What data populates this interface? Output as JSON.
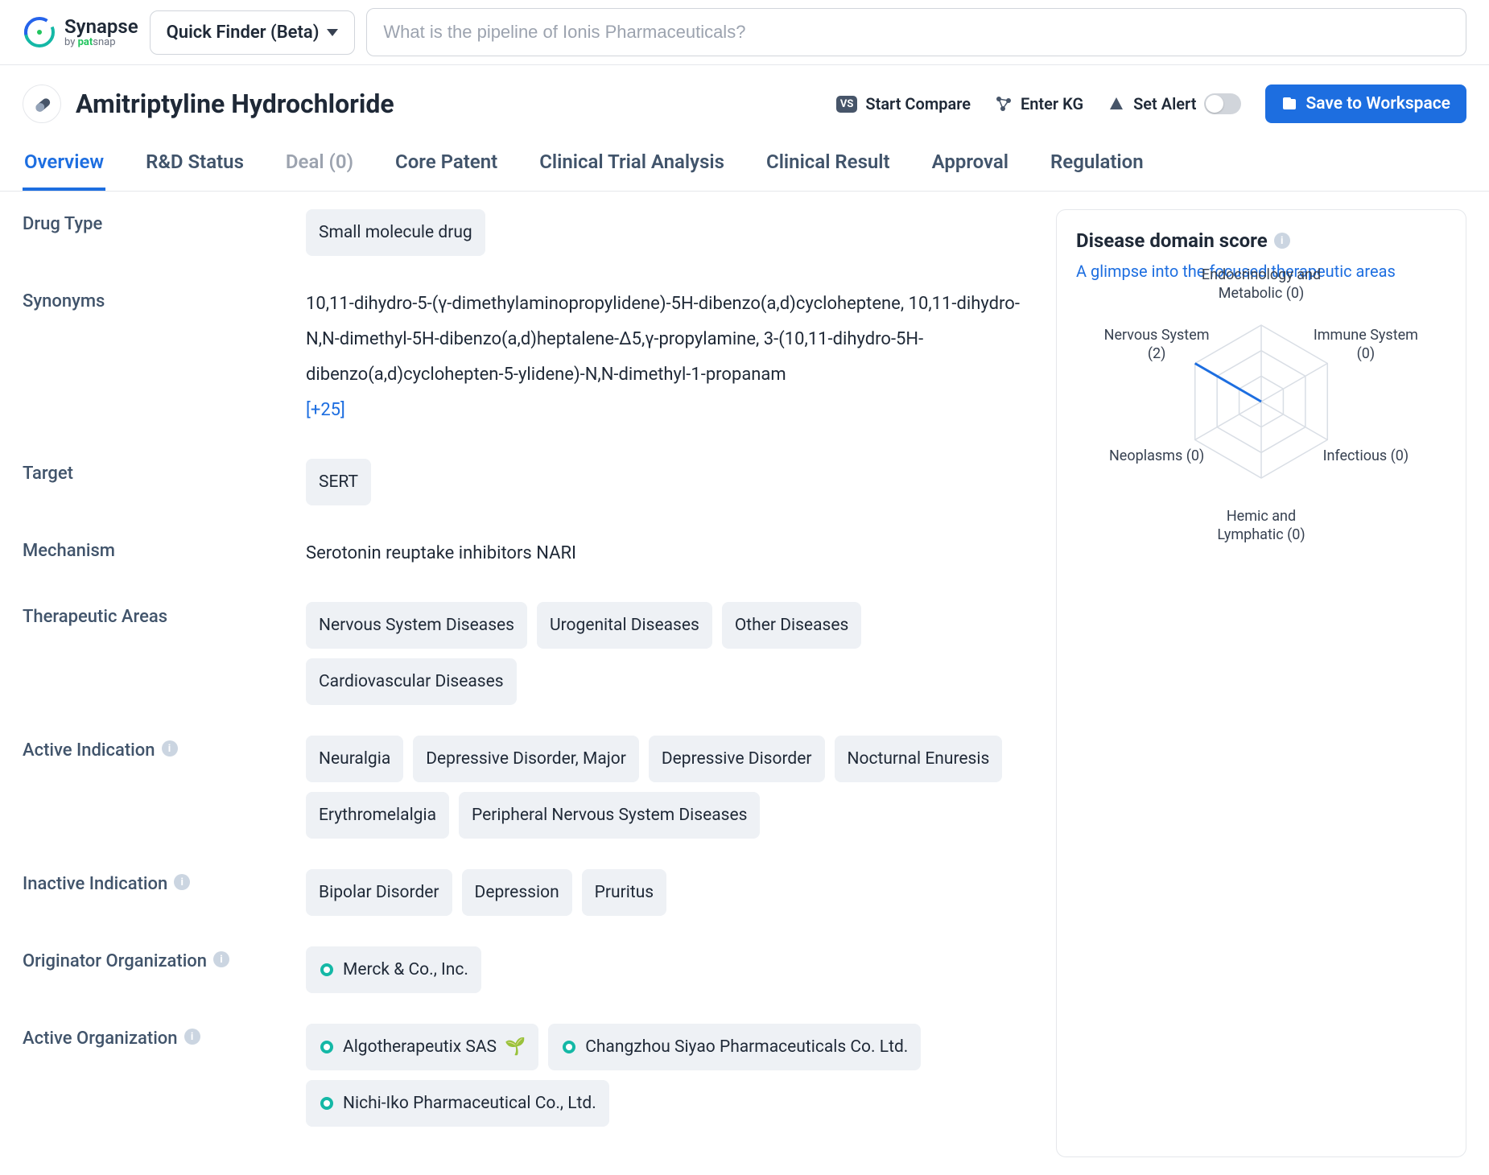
{
  "header": {
    "logo_main": "Synapse",
    "logo_by": "by ",
    "logo_brand_green": "pat",
    "logo_brand_rest": "snap",
    "quick_finder_label": "Quick Finder (Beta)",
    "search_placeholder": "What is the pipeline of Ionis Pharmaceuticals?"
  },
  "title": "Amitriptyline Hydrochloride",
  "actions": {
    "compare": "Start Compare",
    "enter_kg": "Enter KG",
    "set_alert": "Set Alert",
    "save": "Save to Workspace"
  },
  "tabs": {
    "overview": "Overview",
    "rd_status": "R&D Status",
    "deal": "Deal (0)",
    "core_patent": "Core Patent",
    "clinical_trial": "Clinical Trial Analysis",
    "clinical_result": "Clinical Result",
    "approval": "Approval",
    "regulation": "Regulation"
  },
  "fields": {
    "drug_type_label": "Drug Type",
    "drug_type_values": [
      "Small molecule drug"
    ],
    "synonyms_label": "Synonyms",
    "synonyms_text": "10,11-dihydro-5-(γ-dimethylaminopropylidene)-5H-dibenzo(a,d)cycloheptene, 10,11-dihydro-N,N-dimethyl-5H-dibenzo(a,d)heptalene-Δ5,γ-propylamine, 3-(10,11-dihydro-5H-dibenzo(a,d)cyclohepten-5-ylidene)-N,N-dimethyl-1-propanam",
    "synonyms_more": "[+25]",
    "target_label": "Target",
    "target_values": [
      "SERT"
    ],
    "mechanism_label": "Mechanism",
    "mechanism_text": "Serotonin reuptake inhibitors   NARI",
    "therapeutic_label": "Therapeutic Areas",
    "therapeutic_values": [
      "Nervous System Diseases",
      "Urogenital Diseases",
      "Other Diseases",
      "Cardiovascular Diseases"
    ],
    "active_ind_label": "Active Indication",
    "active_ind_values": [
      "Neuralgia",
      "Depressive Disorder, Major",
      "Depressive Disorder",
      "Nocturnal Enuresis",
      "Erythromelalgia",
      "Peripheral Nervous System Diseases"
    ],
    "inactive_ind_label": "Inactive Indication",
    "inactive_ind_values": [
      "Bipolar Disorder",
      "Depression",
      "Pruritus"
    ],
    "originator_label": "Originator Organization",
    "originator_values": [
      "Merck & Co., Inc."
    ],
    "active_org_label": "Active Organization",
    "active_org_values": [
      "Algotherapeutix SAS",
      "Changzhou Siyao Pharmaceuticals Co. Ltd.",
      "Nichi-Iko Pharmaceutical Co., Ltd."
    ]
  },
  "side": {
    "title": "Disease domain score",
    "subtitle": "A glimpse into the focused therapeutic areas",
    "radar": {
      "type": "radar",
      "axes": [
        {
          "label": "Endocrinology and Metabolic (0)",
          "value": 0
        },
        {
          "label": "Immune System (0)",
          "value": 0
        },
        {
          "label": "Infectious (0)",
          "value": 0
        },
        {
          "label": "Hemic and Lymphatic (0)",
          "value": 0
        },
        {
          "label": "Neoplasms (0)",
          "value": 0
        },
        {
          "label": "Nervous System (2)",
          "value": 2
        }
      ],
      "max_value": 2,
      "rings": 3,
      "ring_color": "#d9dee5",
      "line_color": "#1d6ee0",
      "line_width": 3,
      "background": "#ffffff"
    }
  }
}
